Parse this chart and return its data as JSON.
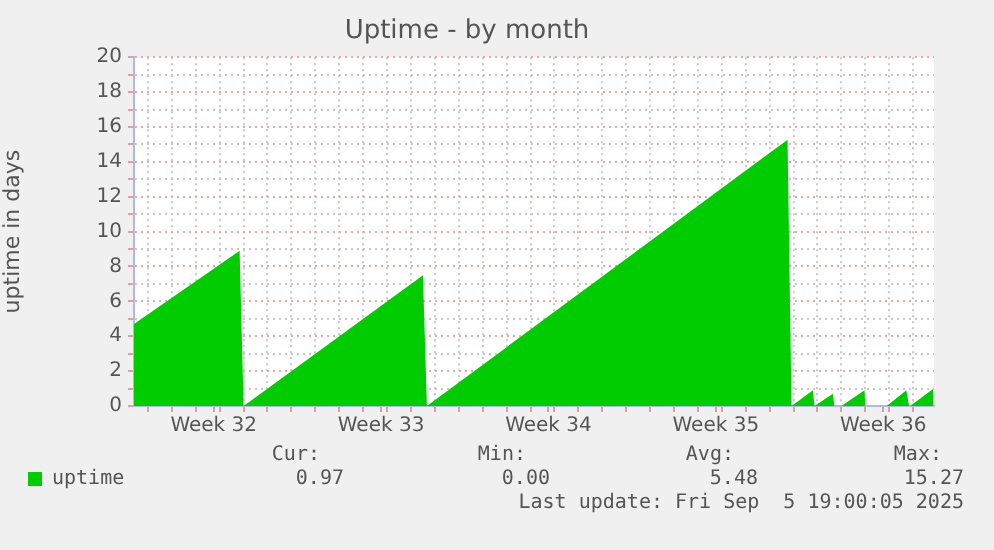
{
  "chart_data": {
    "type": "area",
    "title": "Uptime - by month",
    "ylabel": "uptime in days",
    "series": [
      {
        "name": "uptime",
        "color": "#00cc00",
        "x": [
          "2025-08-04T10:00",
          "2025-08-08T20:00",
          "2025-08-09T00:00",
          "2025-08-16T12:00",
          "2025-08-16T16:00",
          "2025-08-31T18:00",
          "2025-08-31T22:00",
          "2025-09-01T19:30",
          "2025-09-01T21:00",
          "2025-09-02T15:30",
          "2025-09-02T17:00",
          "2025-09-03T00:00",
          "2025-09-03T23:15",
          "2025-09-04T00:00",
          "2025-09-04T21:30",
          "2025-09-05T17:15",
          "2025-09-05T20:00",
          "2025-09-05T21:00",
          "2025-09-06T20:00"
        ],
        "values": [
          4.7,
          8.9,
          0,
          7.5,
          0,
          15.27,
          0,
          0.9,
          0,
          0.7,
          0,
          0,
          0.9,
          0,
          0,
          0.9,
          0,
          0,
          0.97
        ]
      }
    ],
    "xlim": [
      "2025-08-04T10:00",
      "2025-09-06T21:00"
    ],
    "xticks": [
      {
        "value": "2025-08-07T18:00",
        "label": "Week 32"
      },
      {
        "value": "2025-08-14T18:00",
        "label": "Week 33"
      },
      {
        "value": "2025-08-21T18:00",
        "label": "Week 34"
      },
      {
        "value": "2025-08-28T18:00",
        "label": "Week 35"
      },
      {
        "value": "2025-09-04T18:00",
        "label": "Week 36"
      },
      {
        "value": "2025-08-05",
        "label": null
      },
      {
        "value": "2025-08-06",
        "label": null
      },
      {
        "value": "2025-08-07",
        "label": null
      },
      {
        "value": "2025-08-08",
        "label": null
      },
      {
        "value": "2025-08-09",
        "label": null
      },
      {
        "value": "2025-08-10",
        "label": null
      },
      {
        "value": "2025-08-11",
        "label": null
      },
      {
        "value": "2025-08-12",
        "label": null
      },
      {
        "value": "2025-08-13",
        "label": null
      },
      {
        "value": "2025-08-14",
        "label": null
      },
      {
        "value": "2025-08-15",
        "label": null
      },
      {
        "value": "2025-08-16",
        "label": null
      },
      {
        "value": "2025-08-17",
        "label": null
      },
      {
        "value": "2025-08-18",
        "label": null
      },
      {
        "value": "2025-08-19",
        "label": null
      },
      {
        "value": "2025-08-20",
        "label": null
      },
      {
        "value": "2025-08-21",
        "label": null
      },
      {
        "value": "2025-08-22",
        "label": null
      },
      {
        "value": "2025-08-23",
        "label": null
      },
      {
        "value": "2025-08-24",
        "label": null
      },
      {
        "value": "2025-08-25",
        "label": null
      },
      {
        "value": "2025-08-26",
        "label": null
      },
      {
        "value": "2025-08-27",
        "label": null
      },
      {
        "value": "2025-08-28",
        "label": null
      },
      {
        "value": "2025-08-29",
        "label": null
      },
      {
        "value": "2025-08-30",
        "label": null
      },
      {
        "value": "2025-08-31",
        "label": null
      },
      {
        "value": "2025-09-01",
        "label": null
      },
      {
        "value": "2025-09-02",
        "label": null
      },
      {
        "value": "2025-09-03",
        "label": null
      },
      {
        "value": "2025-09-04",
        "label": null
      },
      {
        "value": "2025-09-05",
        "label": null
      },
      {
        "value": "2025-09-06",
        "label": null
      }
    ],
    "ylim": [
      0,
      20
    ],
    "yticks": [
      0,
      {
        "value": 1,
        "label": null
      },
      2,
      {
        "value": 3,
        "label": null
      },
      4,
      {
        "value": 5,
        "label": null
      },
      6,
      {
        "value": 7,
        "label": null
      },
      8,
      {
        "value": 9,
        "label": null
      },
      10,
      {
        "value": 11,
        "label": null
      },
      12,
      {
        "value": 13,
        "label": null
      },
      14,
      {
        "value": 15,
        "label": null
      },
      16,
      {
        "value": 17,
        "label": null
      },
      18,
      {
        "value": 19,
        "label": null
      },
      20
    ],
    "grid": true,
    "legend": "bottom left",
    "annotations": [
      "Cur:",
      "Min:",
      "Avg:",
      "Max:",
      "0.97",
      "0.00",
      "5.48",
      "15.27",
      "Last update: Fri Sep  5 19:00:05 2025"
    ]
  }
}
